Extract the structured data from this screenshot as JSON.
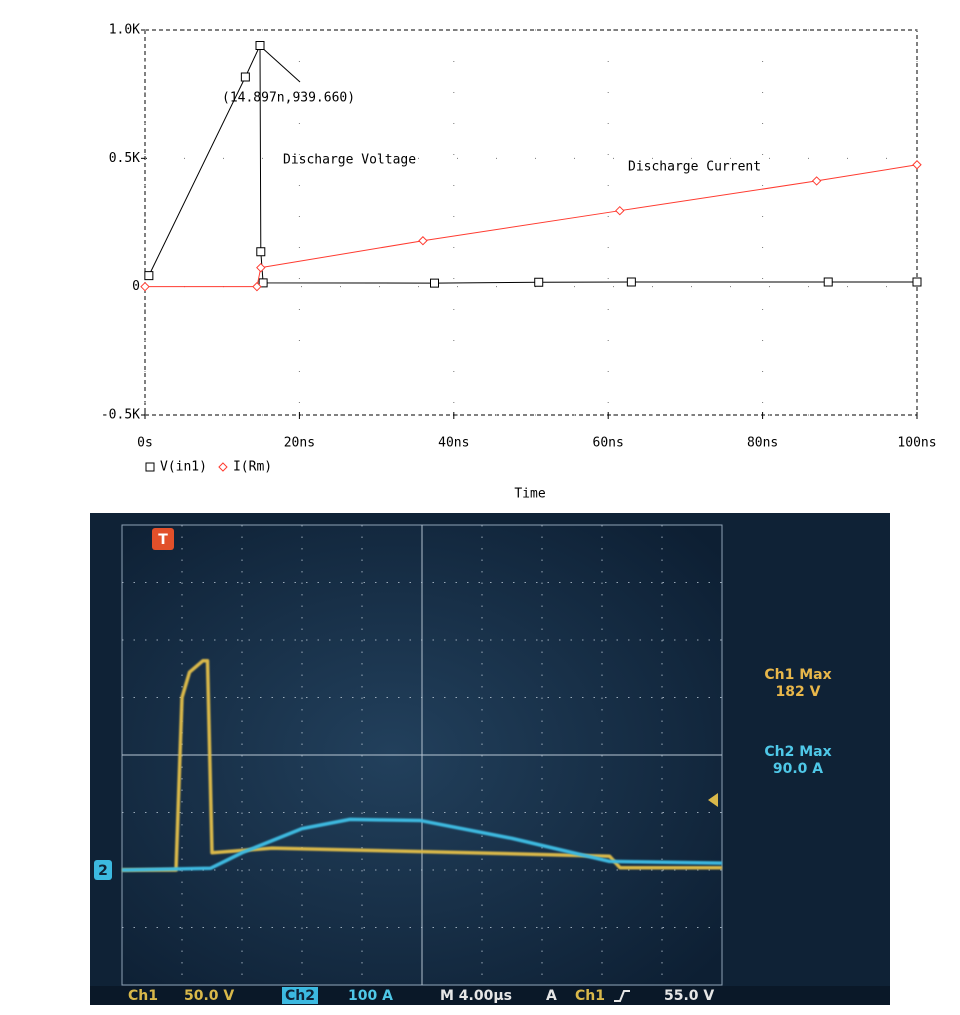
{
  "chart_data": [
    {
      "type": "line",
      "xlabel": "Time",
      "xlim": [
        0,
        100
      ],
      "xticks": [
        {
          "value": 0,
          "label": "0s"
        },
        {
          "value": 20,
          "label": "20ns"
        },
        {
          "value": 40,
          "label": "40ns"
        },
        {
          "value": 60,
          "label": "60ns"
        },
        {
          "value": 80,
          "label": "80ns"
        },
        {
          "value": 100,
          "label": "100ns"
        }
      ],
      "ylim": [
        -500,
        1000
      ],
      "yticks": [
        {
          "value": -500,
          "label": "-0.5K"
        },
        0,
        {
          "value": 500,
          "label": "0.5K"
        },
        {
          "value": 1000,
          "label": "1.0K"
        }
      ],
      "grid": true,
      "annotations": [
        "(14.897n,939.660)",
        "Discharge Voltage",
        "Discharge Current"
      ],
      "series": [
        {
          "name": "V(in1)",
          "color": "#000000",
          "marker": "square",
          "x": [
            0.5,
            13,
            14.897,
            15,
            15.3,
            37.5,
            51,
            63,
            88.5,
            100
          ],
          "values": [
            43,
            817,
            939.66,
            136,
            15,
            14,
            17,
            18,
            18,
            18
          ]
        },
        {
          "name": "I(Rm)",
          "color": "#ff3b30",
          "marker": "diamond",
          "x": [
            0,
            14.5,
            15,
            36,
            61.5,
            87,
            100
          ],
          "values": [
            0,
            0,
            74,
            179,
            296,
            412,
            475
          ]
        }
      ]
    },
    {
      "type": "line",
      "xlim": [
        0,
        40
      ],
      "ylim": [
        -100,
        300
      ],
      "y2lim": [
        -200,
        600
      ],
      "channel_markers": [
        "T",
        "2"
      ],
      "readouts": [
        {
          "label": "Ch1 Max",
          "value": "182 V"
        },
        {
          "label": "Ch2 Max",
          "value": "90.0 A"
        }
      ],
      "status_bar": [
        "Ch1",
        "50.0 V",
        "Ch2",
        "100 A",
        "M 4.00µs",
        "A",
        "Ch1",
        "55.0 V"
      ],
      "series": [
        {
          "name": "Ch1",
          "color": "#d9b84a",
          "x": [
            0,
            3.6,
            4.0,
            4.5,
            5.4,
            5.7,
            6.0,
            10,
            20,
            32.5,
            33.2,
            40
          ],
          "values": [
            0,
            0,
            150,
            172,
            182,
            182,
            15,
            19,
            16,
            12,
            2,
            2
          ]
        },
        {
          "name": "Ch2",
          "color": "#3cb9e0",
          "axis": "y2",
          "x": [
            0,
            5.9,
            8,
            12,
            15.2,
            19.9,
            26,
            32.5,
            40
          ],
          "values": [
            0,
            3,
            30,
            72,
            88,
            86,
            55,
            15,
            12
          ]
        }
      ]
    }
  ]
}
